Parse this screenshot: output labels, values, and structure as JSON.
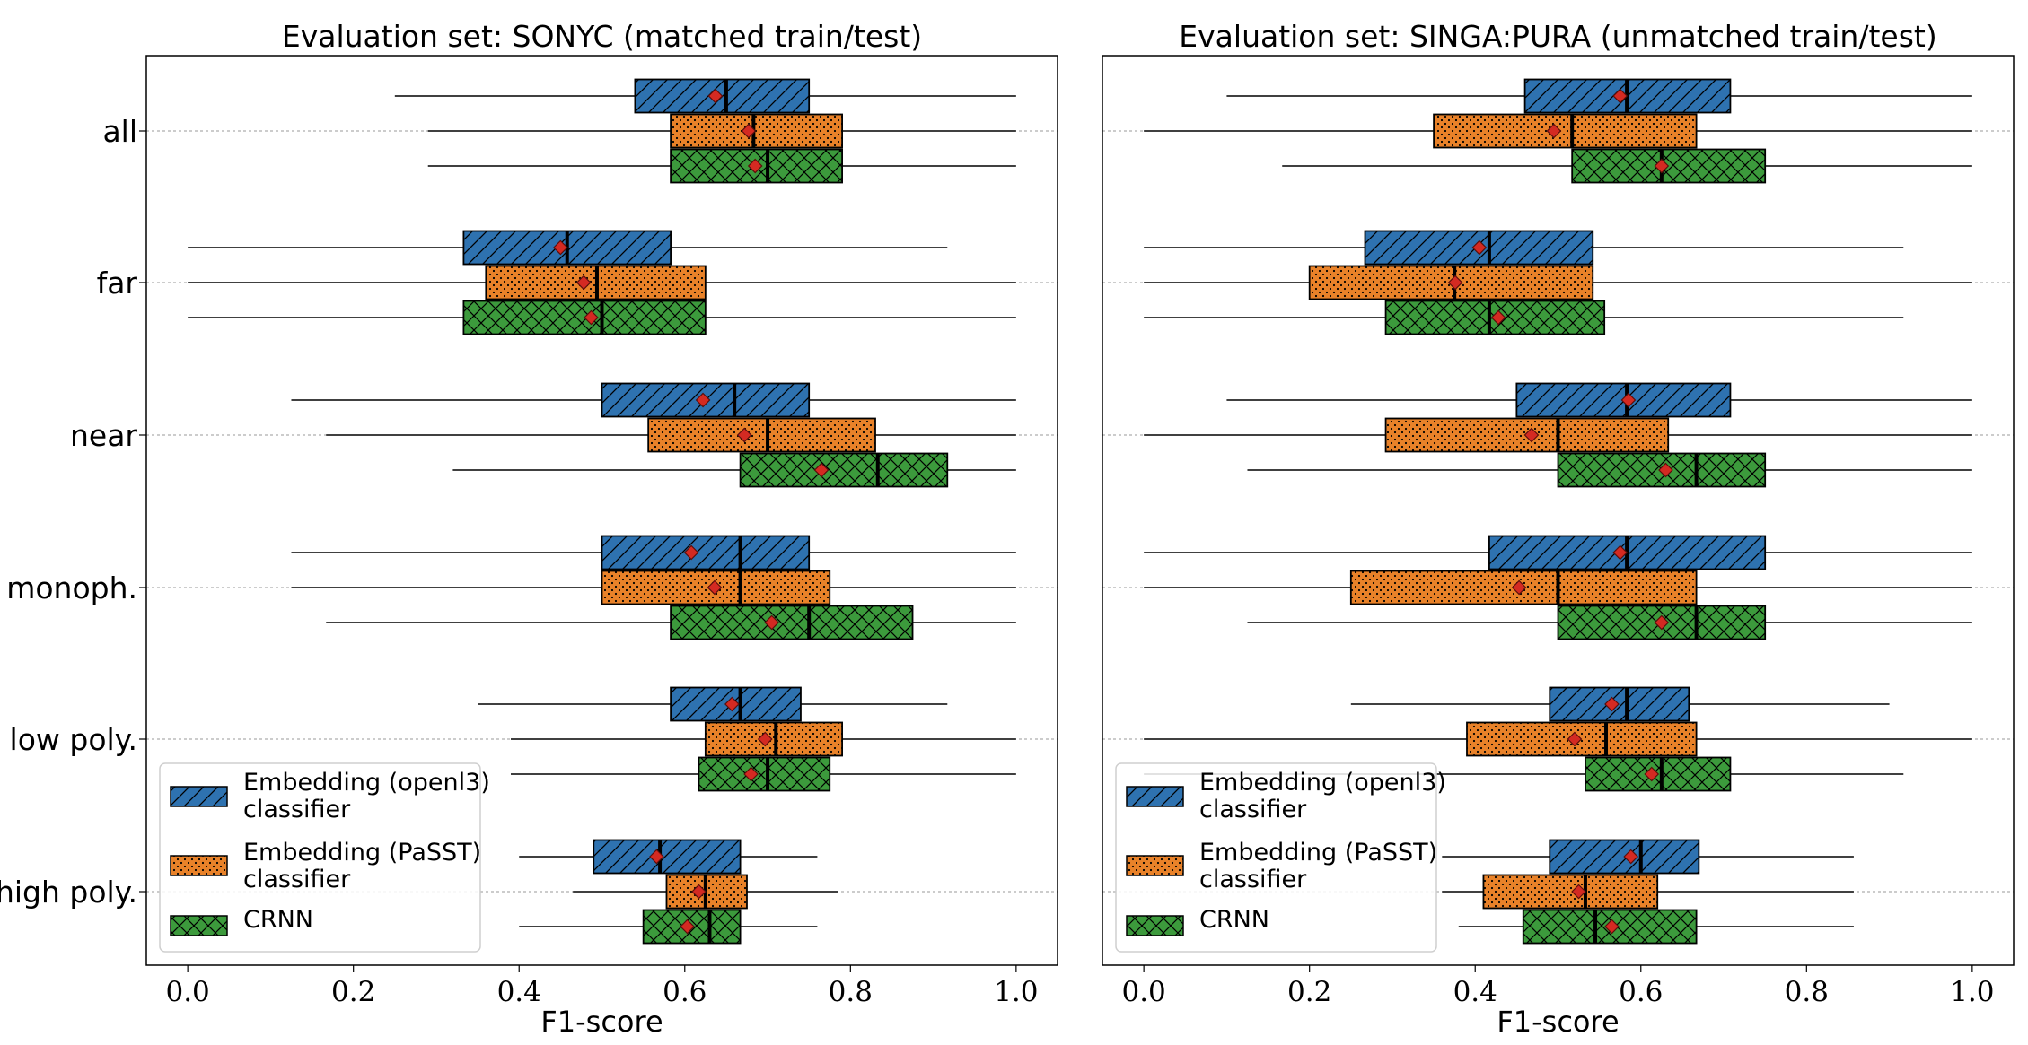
{
  "chart_data": [
    {
      "type": "boxplot",
      "orientation": "horizontal",
      "title": "Evaluation set: SONYC (matched train/test)",
      "xlabel": "F1-score",
      "xlim": [
        -0.05,
        1.05
      ],
      "xticks": [
        "0.0",
        "0.2",
        "0.4",
        "0.6",
        "0.8",
        "1.0"
      ],
      "categories": [
        "all",
        "far",
        "near",
        "monoph.",
        "low poly.",
        "high poly."
      ],
      "legend": {
        "position": "lower-left",
        "entries": [
          "Embedding (openl3) classifier",
          "Embedding (PaSST) classifier",
          "CRNN"
        ]
      },
      "series": [
        {
          "name": "Embedding (openl3) classifier",
          "color": "#2e72b0",
          "pattern": "diagonal-hatch",
          "stats": [
            {
              "whislo": 0.25,
              "q1": 0.54,
              "med": 0.65,
              "q3": 0.75,
              "whishi": 1.0,
              "mean": 0.637
            },
            {
              "whislo": 0.0,
              "q1": 0.333,
              "med": 0.458,
              "q3": 0.583,
              "whishi": 0.917,
              "mean": 0.45
            },
            {
              "whislo": 0.125,
              "q1": 0.5,
              "med": 0.66,
              "q3": 0.75,
              "whishi": 1.0,
              "mean": 0.622
            },
            {
              "whislo": 0.125,
              "q1": 0.5,
              "med": 0.667,
              "q3": 0.75,
              "whishi": 1.0,
              "mean": 0.608
            },
            {
              "whislo": 0.35,
              "q1": 0.583,
              "med": 0.667,
              "q3": 0.74,
              "whishi": 0.917,
              "mean": 0.657
            },
            {
              "whislo": 0.4,
              "q1": 0.49,
              "med": 0.57,
              "q3": 0.667,
              "whishi": 0.76,
              "mean": 0.566
            }
          ]
        },
        {
          "name": "Embedding (PaSST) classifier",
          "color": "#e98229",
          "pattern": "dots",
          "stats": [
            {
              "whislo": 0.29,
              "q1": 0.583,
              "med": 0.683,
              "q3": 0.79,
              "whishi": 1.0,
              "mean": 0.677
            },
            {
              "whislo": 0.0,
              "q1": 0.36,
              "med": 0.494,
              "q3": 0.625,
              "whishi": 1.0,
              "mean": 0.478
            },
            {
              "whislo": 0.167,
              "q1": 0.556,
              "med": 0.7,
              "q3": 0.83,
              "whishi": 1.0,
              "mean": 0.672
            },
            {
              "whislo": 0.125,
              "q1": 0.5,
              "med": 0.667,
              "q3": 0.775,
              "whishi": 1.0,
              "mean": 0.636
            },
            {
              "whislo": 0.39,
              "q1": 0.625,
              "med": 0.71,
              "q3": 0.79,
              "whishi": 1.0,
              "mean": 0.697
            },
            {
              "whislo": 0.465,
              "q1": 0.578,
              "med": 0.625,
              "q3": 0.675,
              "whishi": 0.785,
              "mean": 0.617
            }
          ]
        },
        {
          "name": "CRNN",
          "color": "#3c9a3c",
          "pattern": "crosshatch",
          "stats": [
            {
              "whislo": 0.29,
              "q1": 0.583,
              "med": 0.7,
              "q3": 0.79,
              "whishi": 1.0,
              "mean": 0.685
            },
            {
              "whislo": 0.0,
              "q1": 0.333,
              "med": 0.5,
              "q3": 0.625,
              "whishi": 1.0,
              "mean": 0.487
            },
            {
              "whislo": 0.32,
              "q1": 0.667,
              "med": 0.833,
              "q3": 0.917,
              "whishi": 1.0,
              "mean": 0.765
            },
            {
              "whislo": 0.167,
              "q1": 0.583,
              "med": 0.75,
              "q3": 0.875,
              "whishi": 1.0,
              "mean": 0.705
            },
            {
              "whislo": 0.39,
              "q1": 0.617,
              "med": 0.7,
              "q3": 0.775,
              "whishi": 1.0,
              "mean": 0.68
            },
            {
              "whislo": 0.4,
              "q1": 0.55,
              "med": 0.63,
              "q3": 0.667,
              "whishi": 0.76,
              "mean": 0.603
            }
          ]
        }
      ]
    },
    {
      "type": "boxplot",
      "orientation": "horizontal",
      "title": "Evaluation set: SINGA:PURA (unmatched train/test)",
      "xlabel": "F1-score",
      "xlim": [
        -0.05,
        1.05
      ],
      "xticks": [
        "0.0",
        "0.2",
        "0.4",
        "0.6",
        "0.8",
        "1.0"
      ],
      "categories": [
        "all",
        "far",
        "near",
        "monoph.",
        "low poly.",
        "high poly."
      ],
      "legend": {
        "position": "lower-left",
        "entries": [
          "Embedding (openl3) classifier",
          "Embedding (PaSST) classifier",
          "CRNN"
        ]
      },
      "series": [
        {
          "name": "Embedding (openl3) classifier",
          "color": "#2e72b0",
          "pattern": "diagonal-hatch",
          "stats": [
            {
              "whislo": 0.1,
              "q1": 0.46,
              "med": 0.583,
              "q3": 0.708,
              "whishi": 1.0,
              "mean": 0.575
            },
            {
              "whislo": 0.0,
              "q1": 0.267,
              "med": 0.417,
              "q3": 0.542,
              "whishi": 0.917,
              "mean": 0.405
            },
            {
              "whislo": 0.1,
              "q1": 0.45,
              "med": 0.583,
              "q3": 0.708,
              "whishi": 1.0,
              "mean": 0.585
            },
            {
              "whislo": 0.0,
              "q1": 0.417,
              "med": 0.583,
              "q3": 0.75,
              "whishi": 1.0,
              "mean": 0.575
            },
            {
              "whislo": 0.25,
              "q1": 0.49,
              "med": 0.583,
              "q3": 0.658,
              "whishi": 0.9,
              "mean": 0.565
            },
            {
              "whislo": 0.36,
              "q1": 0.49,
              "med": 0.6,
              "q3": 0.67,
              "whishi": 0.857,
              "mean": 0.588
            }
          ]
        },
        {
          "name": "Embedding (PaSST) classifier",
          "color": "#e98229",
          "pattern": "dots",
          "stats": [
            {
              "whislo": 0.0,
              "q1": 0.35,
              "med": 0.517,
              "q3": 0.667,
              "whishi": 1.0,
              "mean": 0.495
            },
            {
              "whislo": 0.0,
              "q1": 0.2,
              "med": 0.375,
              "q3": 0.542,
              "whishi": 1.0,
              "mean": 0.376
            },
            {
              "whislo": 0.0,
              "q1": 0.292,
              "med": 0.5,
              "q3": 0.633,
              "whishi": 1.0,
              "mean": 0.468
            },
            {
              "whislo": 0.0,
              "q1": 0.25,
              "med": 0.5,
              "q3": 0.667,
              "whishi": 1.0,
              "mean": 0.453
            },
            {
              "whislo": 0.0,
              "q1": 0.39,
              "med": 0.558,
              "q3": 0.667,
              "whishi": 1.0,
              "mean": 0.52
            },
            {
              "whislo": 0.36,
              "q1": 0.41,
              "med": 0.533,
              "q3": 0.62,
              "whishi": 0.857,
              "mean": 0.525
            }
          ]
        },
        {
          "name": "CRNN",
          "color": "#3c9a3c",
          "pattern": "crosshatch",
          "stats": [
            {
              "whislo": 0.167,
              "q1": 0.517,
              "med": 0.625,
              "q3": 0.75,
              "whishi": 1.0,
              "mean": 0.625
            },
            {
              "whislo": 0.0,
              "q1": 0.292,
              "med": 0.417,
              "q3": 0.556,
              "whishi": 0.917,
              "mean": 0.428
            },
            {
              "whislo": 0.125,
              "q1": 0.5,
              "med": 0.667,
              "q3": 0.75,
              "whishi": 1.0,
              "mean": 0.63
            },
            {
              "whislo": 0.125,
              "q1": 0.5,
              "med": 0.667,
              "q3": 0.75,
              "whishi": 1.0,
              "mean": 0.625
            },
            {
              "whislo": 0.0,
              "q1": 0.533,
              "med": 0.625,
              "q3": 0.708,
              "whishi": 0.917,
              "mean": 0.613
            },
            {
              "whislo": 0.38,
              "q1": 0.458,
              "med": 0.545,
              "q3": 0.667,
              "whishi": 0.857,
              "mean": 0.565
            }
          ]
        }
      ]
    }
  ]
}
